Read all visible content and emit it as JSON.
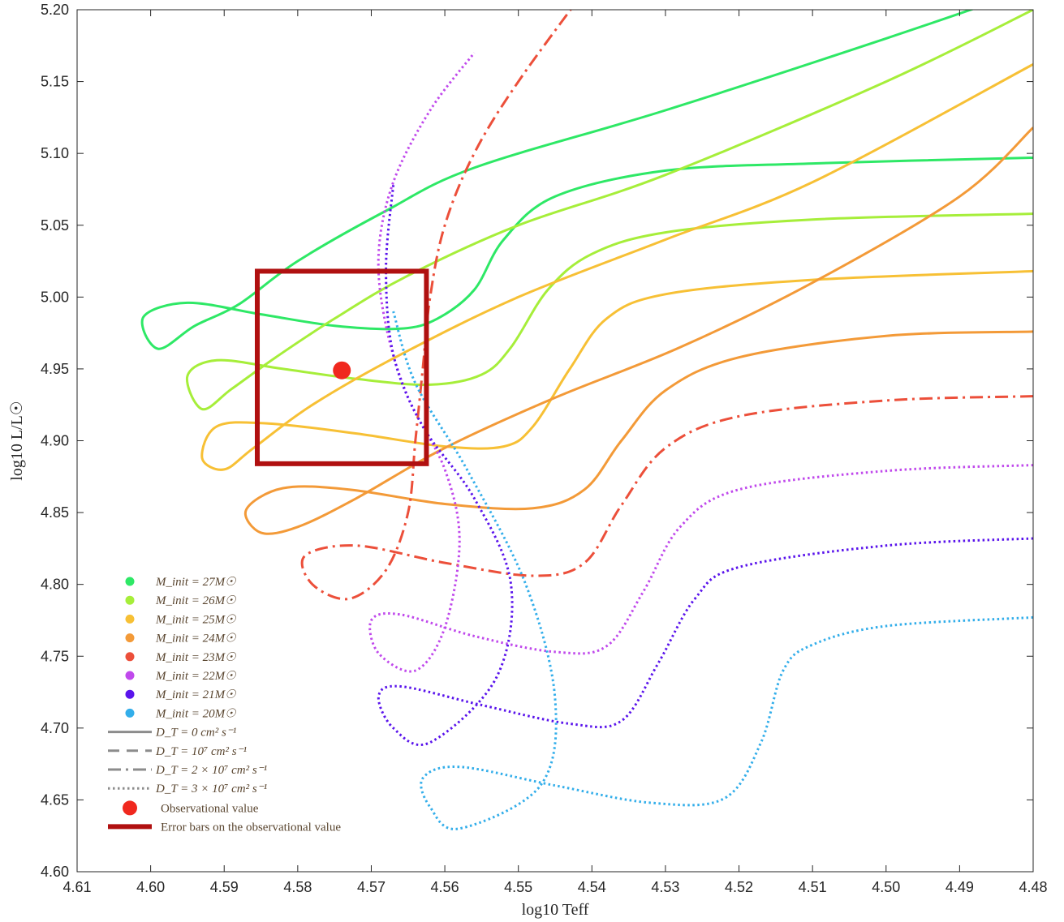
{
  "chart_data": {
    "type": "line",
    "title": "",
    "xlabel": "log10 Teff",
    "ylabel": "log10 L/L☉",
    "x_reversed": true,
    "xlim": [
      4.61,
      4.48
    ],
    "ylim": [
      4.6,
      5.2
    ],
    "grid": false,
    "legend_position": "lower-left",
    "x_ticks": [
      "4.61",
      "4.60",
      "4.59",
      "4.58",
      "4.57",
      "4.56",
      "4.55",
      "4.54",
      "4.53",
      "4.52",
      "4.51",
      "4.50",
      "4.49",
      "4.48"
    ],
    "y_ticks": [
      "4.60",
      "4.65",
      "4.70",
      "4.75",
      "4.80",
      "4.85",
      "4.90",
      "4.95",
      "5.00",
      "5.05",
      "5.10",
      "5.15",
      "5.20"
    ],
    "masses": [
      {
        "label": "M_init = 27M☉",
        "color": "#2ee866"
      },
      {
        "label": "M_init = 26M☉",
        "color": "#a6ee3a"
      },
      {
        "label": "M_init = 25M☉",
        "color": "#f7c035"
      },
      {
        "label": "M_init = 24M☉",
        "color": "#f39a38"
      },
      {
        "label": "M_init = 23M☉",
        "color": "#ec4f3a"
      },
      {
        "label": "M_init = 22M☉",
        "color": "#c049ec"
      },
      {
        "label": "M_init = 21M☉",
        "color": "#5a14ec"
      },
      {
        "label": "M_init = 20M☉",
        "color": "#33aeea"
      }
    ],
    "line_styles": [
      {
        "label": "D_T = 0 cm² s⁻¹",
        "dash": "solid"
      },
      {
        "label": "D_T = 10⁷ cm² s⁻¹",
        "dash": "dashed"
      },
      {
        "label": "D_T = 2 × 10⁷ cm² s⁻¹",
        "dash": "dashdot"
      },
      {
        "label": "D_T = 3 × 10⁷ cm² s⁻¹",
        "dash": "dotted"
      }
    ],
    "observation": {
      "label": "Observational value",
      "x": 4.574,
      "y": 4.949,
      "color": "#f0281e"
    },
    "error_box": {
      "label": "Error bars on the observational value",
      "x": [
        4.5855,
        4.5625
      ],
      "y": [
        4.884,
        5.018
      ],
      "color": "#b01010"
    },
    "series": [
      {
        "mass": 27,
        "dash": "solid",
        "color": "#2ee866",
        "points": [
          [
            4.48,
            5.097
          ],
          [
            4.51,
            5.093
          ],
          [
            4.53,
            5.088
          ],
          [
            4.545,
            5.07
          ],
          [
            4.552,
            5.04
          ],
          [
            4.556,
            5.005
          ],
          [
            4.561,
            4.985
          ],
          [
            4.566,
            4.978
          ],
          [
            4.575,
            4.98
          ],
          [
            4.585,
            4.988
          ],
          [
            4.595,
            4.996
          ],
          [
            4.601,
            4.986
          ],
          [
            4.599,
            4.964
          ],
          [
            4.594,
            4.98
          ],
          [
            4.588,
            4.995
          ],
          [
            4.58,
            5.025
          ],
          [
            4.568,
            5.06
          ],
          [
            4.556,
            5.09
          ],
          [
            4.53,
            5.13
          ],
          [
            4.5,
            5.18
          ],
          [
            4.48,
            5.215
          ]
        ]
      },
      {
        "mass": 26,
        "dash": "solid",
        "color": "#a6ee3a",
        "points": [
          [
            4.48,
            5.058
          ],
          [
            4.51,
            5.054
          ],
          [
            4.53,
            5.045
          ],
          [
            4.54,
            5.03
          ],
          [
            4.546,
            5.005
          ],
          [
            4.551,
            4.965
          ],
          [
            4.555,
            4.946
          ],
          [
            4.562,
            4.939
          ],
          [
            4.572,
            4.943
          ],
          [
            4.582,
            4.95
          ],
          [
            4.591,
            4.956
          ],
          [
            4.595,
            4.945
          ],
          [
            4.593,
            4.922
          ],
          [
            4.589,
            4.936
          ],
          [
            4.583,
            4.958
          ],
          [
            4.575,
            4.985
          ],
          [
            4.565,
            5.015
          ],
          [
            4.55,
            5.05
          ],
          [
            4.53,
            5.085
          ],
          [
            4.5,
            5.15
          ],
          [
            4.48,
            5.2
          ]
        ]
      },
      {
        "mass": 25,
        "dash": "solid",
        "color": "#f7c035",
        "points": [
          [
            4.48,
            5.018
          ],
          [
            4.51,
            5.012
          ],
          [
            4.53,
            5.002
          ],
          [
            4.538,
            4.985
          ],
          [
            4.543,
            4.95
          ],
          [
            4.548,
            4.91
          ],
          [
            4.552,
            4.896
          ],
          [
            4.56,
            4.896
          ],
          [
            4.572,
            4.905
          ],
          [
            4.584,
            4.912
          ],
          [
            4.591,
            4.91
          ],
          [
            4.593,
            4.888
          ],
          [
            4.59,
            4.88
          ],
          [
            4.586,
            4.895
          ],
          [
            4.578,
            4.925
          ],
          [
            4.566,
            4.96
          ],
          [
            4.55,
            5.0
          ],
          [
            4.53,
            5.04
          ],
          [
            4.51,
            5.08
          ],
          [
            4.48,
            5.162
          ]
        ]
      },
      {
        "mass": 24,
        "dash": "solid",
        "color": "#f39a38",
        "points": [
          [
            4.48,
            4.976
          ],
          [
            4.5,
            4.973
          ],
          [
            4.52,
            4.958
          ],
          [
            4.53,
            4.935
          ],
          [
            4.536,
            4.9
          ],
          [
            4.541,
            4.866
          ],
          [
            4.548,
            4.853
          ],
          [
            4.56,
            4.856
          ],
          [
            4.573,
            4.866
          ],
          [
            4.582,
            4.867
          ],
          [
            4.587,
            4.852
          ],
          [
            4.585,
            4.836
          ],
          [
            4.58,
            4.84
          ],
          [
            4.572,
            4.86
          ],
          [
            4.56,
            4.895
          ],
          [
            4.545,
            4.93
          ],
          [
            4.528,
            4.965
          ],
          [
            4.51,
            5.01
          ],
          [
            4.49,
            5.07
          ],
          [
            4.48,
            5.118
          ]
        ]
      },
      {
        "mass": 23,
        "dash": "dashdot",
        "color": "#ec4f3a",
        "points": [
          [
            4.48,
            4.931
          ],
          [
            4.5,
            4.928
          ],
          [
            4.52,
            4.917
          ],
          [
            4.53,
            4.895
          ],
          [
            4.536,
            4.855
          ],
          [
            4.541,
            4.815
          ],
          [
            4.548,
            4.806
          ],
          [
            4.56,
            4.815
          ],
          [
            4.572,
            4.827
          ],
          [
            4.579,
            4.82
          ],
          [
            4.578,
            4.8
          ],
          [
            4.573,
            4.79
          ],
          [
            4.568,
            4.81
          ],
          [
            4.565,
            4.85
          ],
          [
            4.564,
            4.9
          ],
          [
            4.563,
            4.95
          ],
          [
            4.562,
            5.0
          ],
          [
            4.56,
            5.05
          ],
          [
            4.556,
            5.1
          ],
          [
            4.55,
            5.15
          ],
          [
            4.54,
            5.22
          ]
        ]
      },
      {
        "mass": 22,
        "dash": "dotted",
        "color": "#c049ec",
        "points": [
          [
            4.48,
            4.883
          ],
          [
            4.5,
            4.879
          ],
          [
            4.52,
            4.866
          ],
          [
            4.528,
            4.84
          ],
          [
            4.533,
            4.795
          ],
          [
            4.538,
            4.757
          ],
          [
            4.545,
            4.753
          ],
          [
            4.556,
            4.764
          ],
          [
            4.566,
            4.779
          ],
          [
            4.57,
            4.775
          ],
          [
            4.569,
            4.752
          ],
          [
            4.564,
            4.74
          ],
          [
            4.56,
            4.77
          ],
          [
            4.558,
            4.83
          ],
          [
            4.56,
            4.88
          ],
          [
            4.565,
            4.93
          ],
          [
            4.568,
            4.98
          ],
          [
            4.569,
            5.03
          ],
          [
            4.567,
            5.08
          ],
          [
            4.562,
            5.13
          ],
          [
            4.556,
            5.17
          ]
        ]
      },
      {
        "mass": 21,
        "dash": "dotted",
        "color": "#5a14ec",
        "points": [
          [
            4.48,
            4.832
          ],
          [
            4.5,
            4.827
          ],
          [
            4.52,
            4.812
          ],
          [
            4.526,
            4.79
          ],
          [
            4.531,
            4.745
          ],
          [
            4.536,
            4.705
          ],
          [
            4.543,
            4.703
          ],
          [
            4.555,
            4.716
          ],
          [
            4.566,
            4.729
          ],
          [
            4.569,
            4.722
          ],
          [
            4.567,
            4.7
          ],
          [
            4.562,
            4.69
          ],
          [
            4.553,
            4.735
          ],
          [
            4.551,
            4.8
          ],
          [
            4.556,
            4.86
          ],
          [
            4.563,
            4.91
          ],
          [
            4.567,
            4.96
          ],
          [
            4.568,
            5.02
          ],
          [
            4.567,
            5.078
          ]
        ]
      },
      {
        "mass": 20,
        "dash": "dotted",
        "color": "#33aeea",
        "points": [
          [
            4.48,
            4.777
          ],
          [
            4.5,
            4.771
          ],
          [
            4.51,
            4.758
          ],
          [
            4.514,
            4.74
          ],
          [
            4.517,
            4.69
          ],
          [
            4.522,
            4.651
          ],
          [
            4.532,
            4.648
          ],
          [
            4.545,
            4.66
          ],
          [
            4.558,
            4.673
          ],
          [
            4.563,
            4.665
          ],
          [
            4.562,
            4.645
          ],
          [
            4.558,
            4.63
          ],
          [
            4.547,
            4.66
          ],
          [
            4.545,
            4.72
          ],
          [
            4.549,
            4.8
          ],
          [
            4.557,
            4.88
          ],
          [
            4.564,
            4.94
          ],
          [
            4.567,
            4.99
          ]
        ]
      }
    ]
  },
  "legend": {
    "mass_entries": [
      {
        "text": "M_init = 27M☉",
        "color": "#2ee866"
      },
      {
        "text": "M_init = 26M☉",
        "color": "#a6ee3a"
      },
      {
        "text": "M_init = 25M☉",
        "color": "#f7c035"
      },
      {
        "text": "M_init = 24M☉",
        "color": "#f39a38"
      },
      {
        "text": "M_init = 23M☉",
        "color": "#ec4f3a"
      },
      {
        "text": "M_init = 22M☉",
        "color": "#c049ec"
      },
      {
        "text": "M_init = 21M☉",
        "color": "#5a14ec"
      },
      {
        "text": "M_init = 20M☉",
        "color": "#33aeea"
      }
    ],
    "style_entries": [
      {
        "text": "D_T = 0 cm² s⁻¹",
        "dash": "solid"
      },
      {
        "text": "D_T = 10⁷ cm² s⁻¹",
        "dash": "dashed"
      },
      {
        "text": "D_T = 2 × 10⁷ cm² s⁻¹",
        "dash": "dashdot"
      },
      {
        "text": "D_T = 3 × 10⁷ cm² s⁻¹",
        "dash": "dotted"
      }
    ],
    "observation_text": "Observational value",
    "error_text": "Error bars on the observational value"
  }
}
